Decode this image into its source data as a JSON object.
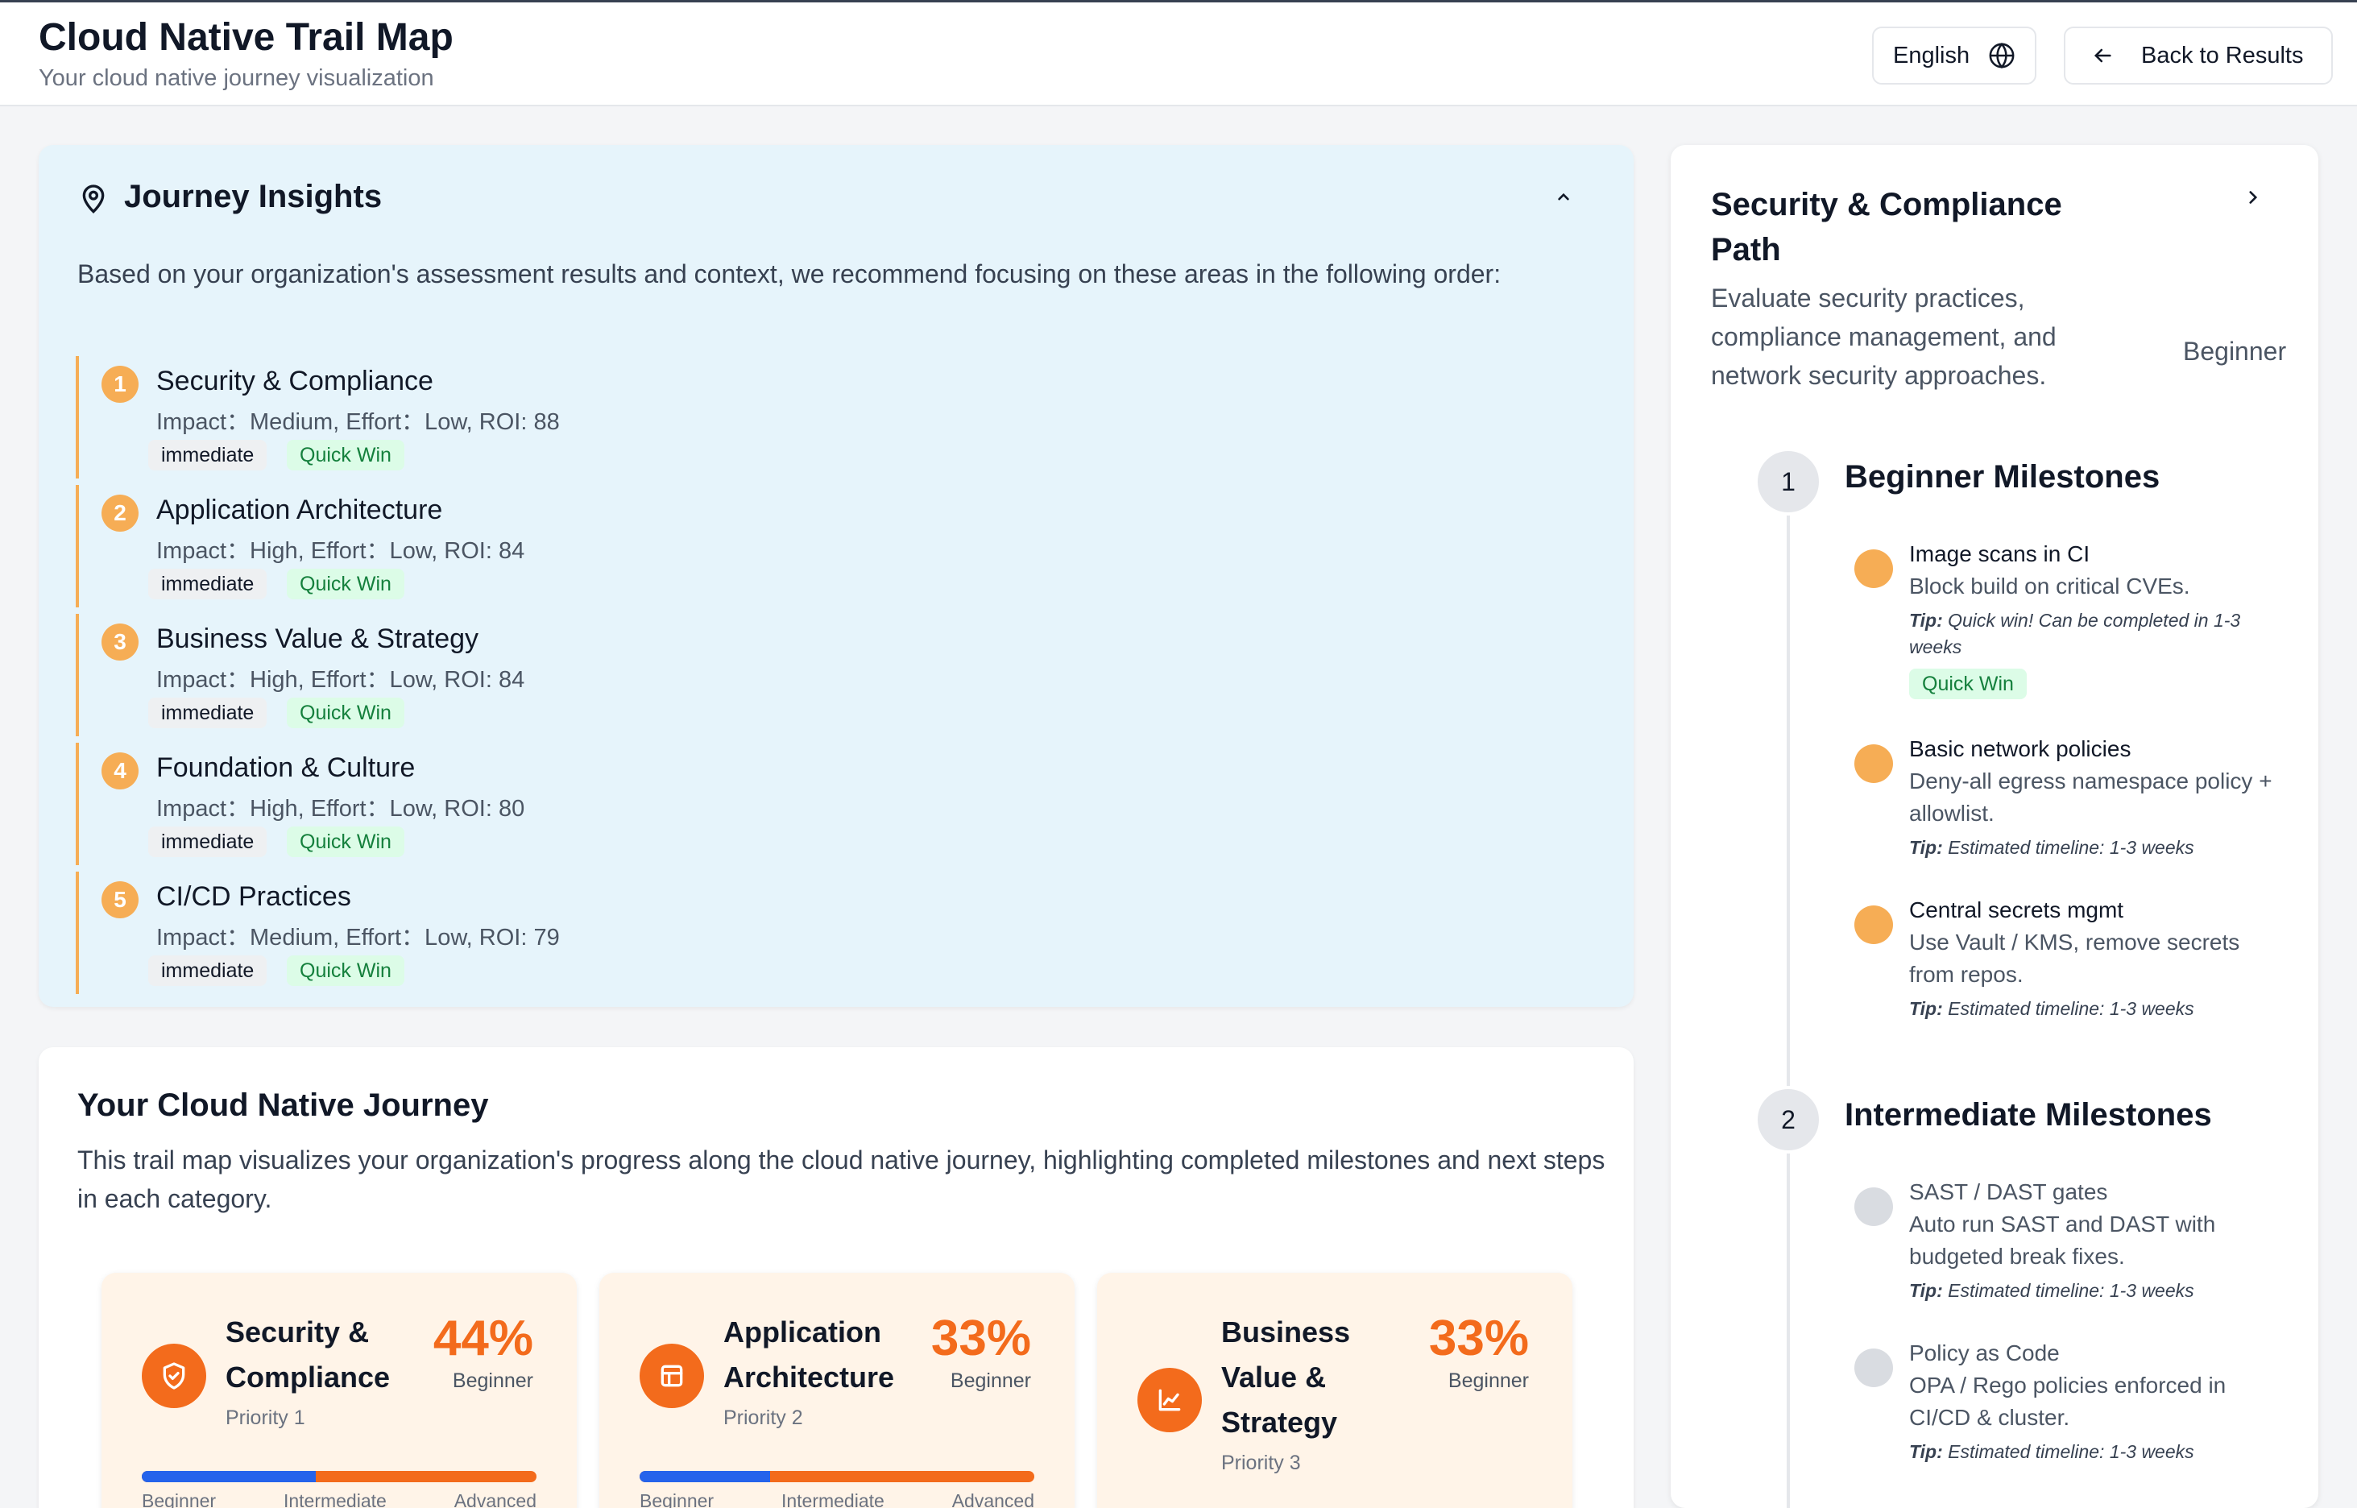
{
  "header": {
    "title": "Cloud Native Trail Map",
    "subtitle": "Your cloud native journey visualization",
    "language_label": "English",
    "back_label": "Back to Results"
  },
  "insights": {
    "title": "Journey Insights",
    "description": "Based on your organization's assessment results and context, we recommend focusing on these areas in the following order:",
    "items": [
      {
        "number": "1",
        "name": "Security & Compliance",
        "meta": "Impact：Medium, Effort：Low, ROI: 88",
        "tag_priority": "immediate",
        "tag_type": "Quick Win"
      },
      {
        "number": "2",
        "name": "Application Architecture",
        "meta": "Impact：High, Effort：Low, ROI: 84",
        "tag_priority": "immediate",
        "tag_type": "Quick Win"
      },
      {
        "number": "3",
        "name": "Business Value & Strategy",
        "meta": "Impact：High, Effort：Low, ROI: 84",
        "tag_priority": "immediate",
        "tag_type": "Quick Win"
      },
      {
        "number": "4",
        "name": "Foundation & Culture",
        "meta": "Impact：High, Effort：Low, ROI: 80",
        "tag_priority": "immediate",
        "tag_type": "Quick Win"
      },
      {
        "number": "5",
        "name": "CI/CD Practices",
        "meta": "Impact：Medium, Effort：Low, ROI: 79",
        "tag_priority": "immediate",
        "tag_type": "Quick Win"
      }
    ]
  },
  "journey": {
    "title": "Your Cloud Native Journey",
    "description": "This trail map visualizes your organization's progress along the cloud native journey, highlighting completed milestones and next steps in each category.",
    "stages": [
      "Beginner",
      "Intermediate",
      "Advanced"
    ],
    "categories": [
      {
        "name": "Security & Compliance",
        "percent": "44%",
        "progress": 0.44,
        "level": "Beginner",
        "priority": "Priority 1",
        "icon": "shield-icon"
      },
      {
        "name": "Application Architecture",
        "percent": "33%",
        "progress": 0.33,
        "level": "Beginner",
        "priority": "Priority 2",
        "icon": "layout-icon"
      },
      {
        "name": "Business Value & Strategy",
        "percent": "33%",
        "progress": 0.33,
        "level": "Beginner",
        "priority": "Priority 3",
        "icon": "chart-icon"
      }
    ]
  },
  "path": {
    "title": "Security & Compliance Path",
    "description": "Evaluate security practices, compliance management, and network security approaches.",
    "level": "Beginner",
    "tip_label": "Tip:",
    "steps": [
      {
        "number": "1",
        "title": "Beginner Milestones",
        "milestones": [
          {
            "name": "Image scans in CI",
            "desc": "Block build on critical CVEs.",
            "tip": "Quick win! Can be completed in 1-3 weeks",
            "tag": "Quick Win",
            "status": "done"
          },
          {
            "name": "Basic network policies",
            "desc": "Deny-all egress namespace policy + allowlist.",
            "tip": "Estimated timeline: 1-3 weeks",
            "status": "done"
          },
          {
            "name": "Central secrets mgmt",
            "desc": "Use Vault / KMS, remove secrets from repos.",
            "tip": "Estimated timeline: 1-3 weeks",
            "status": "done"
          }
        ]
      },
      {
        "number": "2",
        "title": "Intermediate Milestones",
        "milestones": [
          {
            "name": "SAST / DAST gates",
            "desc": "Auto run SAST and DAST with budgeted break fixes.",
            "tip": "Estimated timeline: 1-3 weeks",
            "status": "todo"
          },
          {
            "name": "Policy as Code",
            "desc": "OPA / Rego policies enforced in CI/CD & cluster.",
            "tip": "Estimated timeline: 1-3 weeks",
            "status": "todo"
          }
        ]
      }
    ]
  }
}
